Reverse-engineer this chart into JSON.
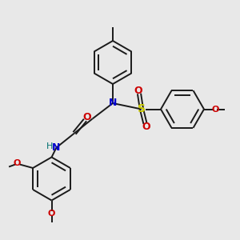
{
  "bg_color": "#e8e8e8",
  "bond_color": "#1a1a1a",
  "n_color": "#0000cc",
  "o_color": "#cc0000",
  "s_color": "#cccc00",
  "h_color": "#007070",
  "lw": 1.4,
  "figsize": [
    3.0,
    3.0
  ],
  "dpi": 100,
  "xlim": [
    0,
    10
  ],
  "ylim": [
    0,
    10
  ]
}
